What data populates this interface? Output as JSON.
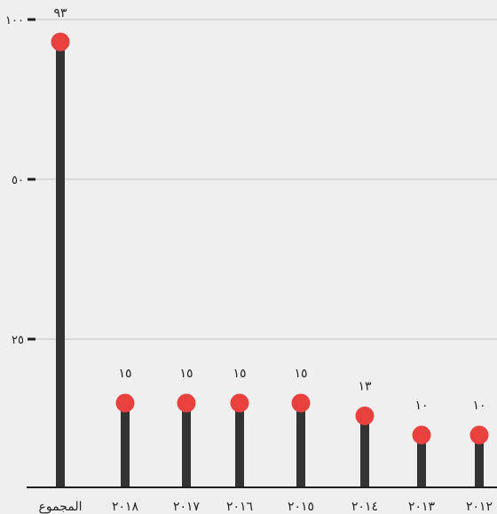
{
  "chart_data": {
    "type": "lollipop",
    "categories": [
      "المجموع",
      "٢٠١٨",
      "٢٠١٧",
      "٢٠١٦",
      "٢٠١٥",
      "٢٠١٤",
      "٢٠١٣",
      "٢٠١٢"
    ],
    "values": [
      93,
      15,
      15,
      15,
      15,
      13,
      10,
      10
    ],
    "value_labels": [
      "٩٣",
      "١٥",
      "١٥",
      "١٥",
      "١٥",
      "١٣",
      "١٠",
      "١٠"
    ],
    "yticks": [
      {
        "value": 100,
        "label": "١٠٠"
      },
      {
        "value": 50,
        "label": "٥٠"
      },
      {
        "value": 25,
        "label": "٢٥"
      }
    ],
    "title": "",
    "xlabel": "",
    "ylabel": "",
    "grid": true,
    "colors": {
      "stem": "#333333",
      "dot": "#e8413e",
      "grid": "#c4c4c4",
      "background": "#efefef"
    }
  }
}
